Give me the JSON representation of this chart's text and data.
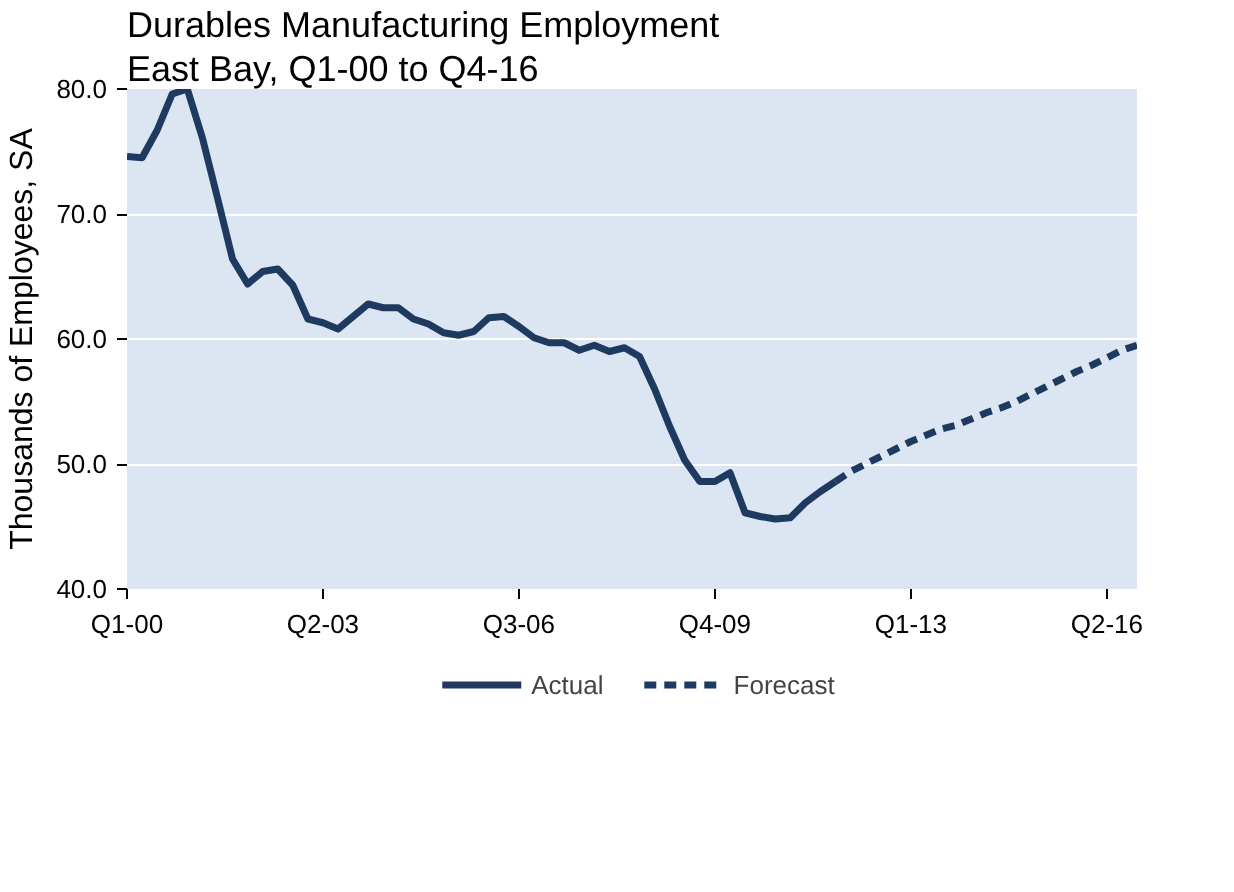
{
  "chart_data": {
    "type": "line",
    "title": "Durables Manufacturing Employment",
    "subtitle": "East Bay, Q1-00 to Q4-16",
    "ylabel": "Thousands of Employees, SA",
    "categories": [
      "Q1-00",
      null,
      null,
      null,
      null,
      null,
      null,
      null,
      null,
      null,
      null,
      null,
      null,
      "Q2-03",
      null,
      null,
      null,
      null,
      null,
      null,
      null,
      null,
      null,
      null,
      null,
      null,
      "Q3-06",
      null,
      null,
      null,
      null,
      null,
      null,
      null,
      null,
      null,
      null,
      null,
      null,
      "Q4-09",
      null,
      null,
      null,
      null,
      null,
      null,
      null,
      null,
      null,
      null,
      null,
      null,
      "Q1-13",
      null,
      null,
      null,
      null,
      null,
      null,
      null,
      null,
      null,
      null,
      null,
      null,
      "Q2-16",
      null,
      null
    ],
    "ylim": [
      40,
      80
    ],
    "yticks": [
      {
        "value": 40,
        "label": "40.0"
      },
      {
        "value": 50,
        "label": "50.0"
      },
      {
        "value": 60,
        "label": "60.0"
      },
      {
        "value": 70,
        "label": "70.0"
      },
      {
        "value": 80,
        "label": "80.0"
      }
    ],
    "grid": "y",
    "legend": "bottom",
    "series": [
      {
        "name": "Actual",
        "color": "#1f3a60",
        "line_style": "solid",
        "values": [
          74.6,
          74.5,
          76.7,
          79.6,
          80.0,
          76.1,
          71.3,
          66.4,
          64.4,
          65.4,
          65.6,
          64.3,
          61.6,
          61.3,
          60.8,
          61.8,
          62.8,
          62.5,
          62.5,
          61.6,
          61.2,
          60.5,
          60.3,
          60.6,
          61.7,
          61.8,
          61.0,
          60.1,
          59.7,
          59.7,
          59.1,
          59.5,
          59.0,
          59.3,
          58.6,
          56.0,
          53.0,
          50.3,
          48.6,
          48.6,
          49.3,
          46.1,
          45.8,
          45.6,
          45.7,
          46.9,
          47.8,
          48.6,
          null,
          null,
          null,
          null,
          null,
          null,
          null,
          null,
          null,
          null,
          null,
          null,
          null,
          null,
          null,
          null,
          null,
          null,
          null,
          null
        ]
      },
      {
        "name": "Forecast",
        "color": "#1f3a60",
        "line_style": "dashed",
        "values": [
          null,
          null,
          null,
          null,
          null,
          null,
          null,
          null,
          null,
          null,
          null,
          null,
          null,
          null,
          null,
          null,
          null,
          null,
          null,
          null,
          null,
          null,
          null,
          null,
          null,
          null,
          null,
          null,
          null,
          null,
          null,
          null,
          null,
          null,
          null,
          null,
          null,
          null,
          null,
          null,
          null,
          null,
          null,
          null,
          null,
          null,
          null,
          48.6,
          49.4,
          50.0,
          50.6,
          51.2,
          51.8,
          52.3,
          52.8,
          53.1,
          53.6,
          54.1,
          54.5,
          55.0,
          55.6,
          56.2,
          56.8,
          57.4,
          57.9,
          58.5,
          59.1,
          59.5
        ]
      }
    ]
  }
}
